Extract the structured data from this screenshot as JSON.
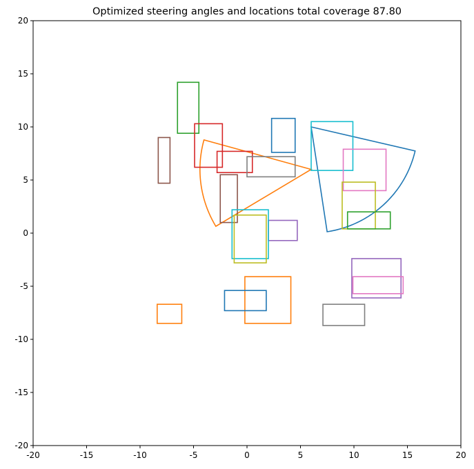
{
  "chart_data": {
    "type": "scatter",
    "title": "Optimized steering angles and locations total coverage 87.80",
    "xlabel": "",
    "ylabel": "",
    "xlim": [
      -20,
      20
    ],
    "ylim": [
      -20,
      20
    ],
    "xticks": [
      -20,
      -15,
      -10,
      -5,
      0,
      5,
      10,
      15,
      20
    ],
    "yticks": [
      -20,
      -15,
      -10,
      -5,
      0,
      5,
      10,
      15,
      20
    ],
    "grid": false,
    "sectors": [
      {
        "color": "#1f77b4",
        "apex": [
          6.0,
          10.0
        ],
        "radius": 9.98,
        "start_deg": -81.4,
        "end_deg": -13.1
      },
      {
        "color": "#ff7f0e",
        "apex": [
          6.0,
          6.0
        ],
        "radius": 10.4,
        "start_deg": 164.5,
        "end_deg": 211.0
      }
    ],
    "rectangles": [
      {
        "color": "#2ca02c",
        "x0": -6.5,
        "y0": 9.4,
        "x1": -4.5,
        "y1": 14.2
      },
      {
        "color": "#d62728",
        "x0": -4.9,
        "y0": 6.2,
        "x1": -2.3,
        "y1": 10.3
      },
      {
        "color": "#1f77b4",
        "x0": 2.3,
        "y0": 7.6,
        "x1": 4.5,
        "y1": 10.8
      },
      {
        "color": "#17becf",
        "x0": 6.0,
        "y0": 5.9,
        "x1": 9.9,
        "y1": 10.5
      },
      {
        "color": "#8c564b",
        "x0": -8.3,
        "y0": 4.7,
        "x1": -7.2,
        "y1": 9.0
      },
      {
        "color": "#d62728",
        "x0": -2.8,
        "y0": 5.7,
        "x1": 0.5,
        "y1": 7.7
      },
      {
        "color": "#7f7f7f",
        "x0": 0.0,
        "y0": 5.3,
        "x1": 4.5,
        "y1": 7.2
      },
      {
        "color": "#e377c2",
        "x0": 9.0,
        "y0": 4.0,
        "x1": 13.0,
        "y1": 7.9
      },
      {
        "color": "#bcbd22",
        "x0": 8.9,
        "y0": 0.4,
        "x1": 12.0,
        "y1": 4.8
      },
      {
        "color": "#8c564b",
        "x0": -2.5,
        "y0": 1.0,
        "x1": -0.9,
        "y1": 5.5
      },
      {
        "color": "#2ca02c",
        "x0": 9.4,
        "y0": 0.4,
        "x1": 13.4,
        "y1": 2.0
      },
      {
        "color": "#9467bd",
        "x0": 2.0,
        "y0": -0.7,
        "x1": 4.7,
        "y1": 1.2
      },
      {
        "color": "#17becf",
        "x0": -1.4,
        "y0": -2.4,
        "x1": 2.0,
        "y1": 2.2
      },
      {
        "color": "#bcbd22",
        "x0": -1.2,
        "y0": -2.8,
        "x1": 1.8,
        "y1": 1.7
      },
      {
        "color": "#9467bd",
        "x0": 9.8,
        "y0": -6.1,
        "x1": 14.4,
        "y1": -2.4
      },
      {
        "color": "#e377c2",
        "x0": 9.9,
        "y0": -5.7,
        "x1": 14.6,
        "y1": -4.1
      },
      {
        "color": "#ff7f0e",
        "x0": -0.2,
        "y0": -8.5,
        "x1": 4.1,
        "y1": -4.1
      },
      {
        "color": "#1f77b4",
        "x0": -2.1,
        "y0": -7.3,
        "x1": 1.8,
        "y1": -5.4
      },
      {
        "color": "#ff7f0e",
        "x0": -8.4,
        "y0": -8.5,
        "x1": -6.1,
        "y1": -6.7
      },
      {
        "color": "#7f7f7f",
        "x0": 7.1,
        "y0": -8.7,
        "x1": 11.0,
        "y1": -6.7
      }
    ]
  }
}
